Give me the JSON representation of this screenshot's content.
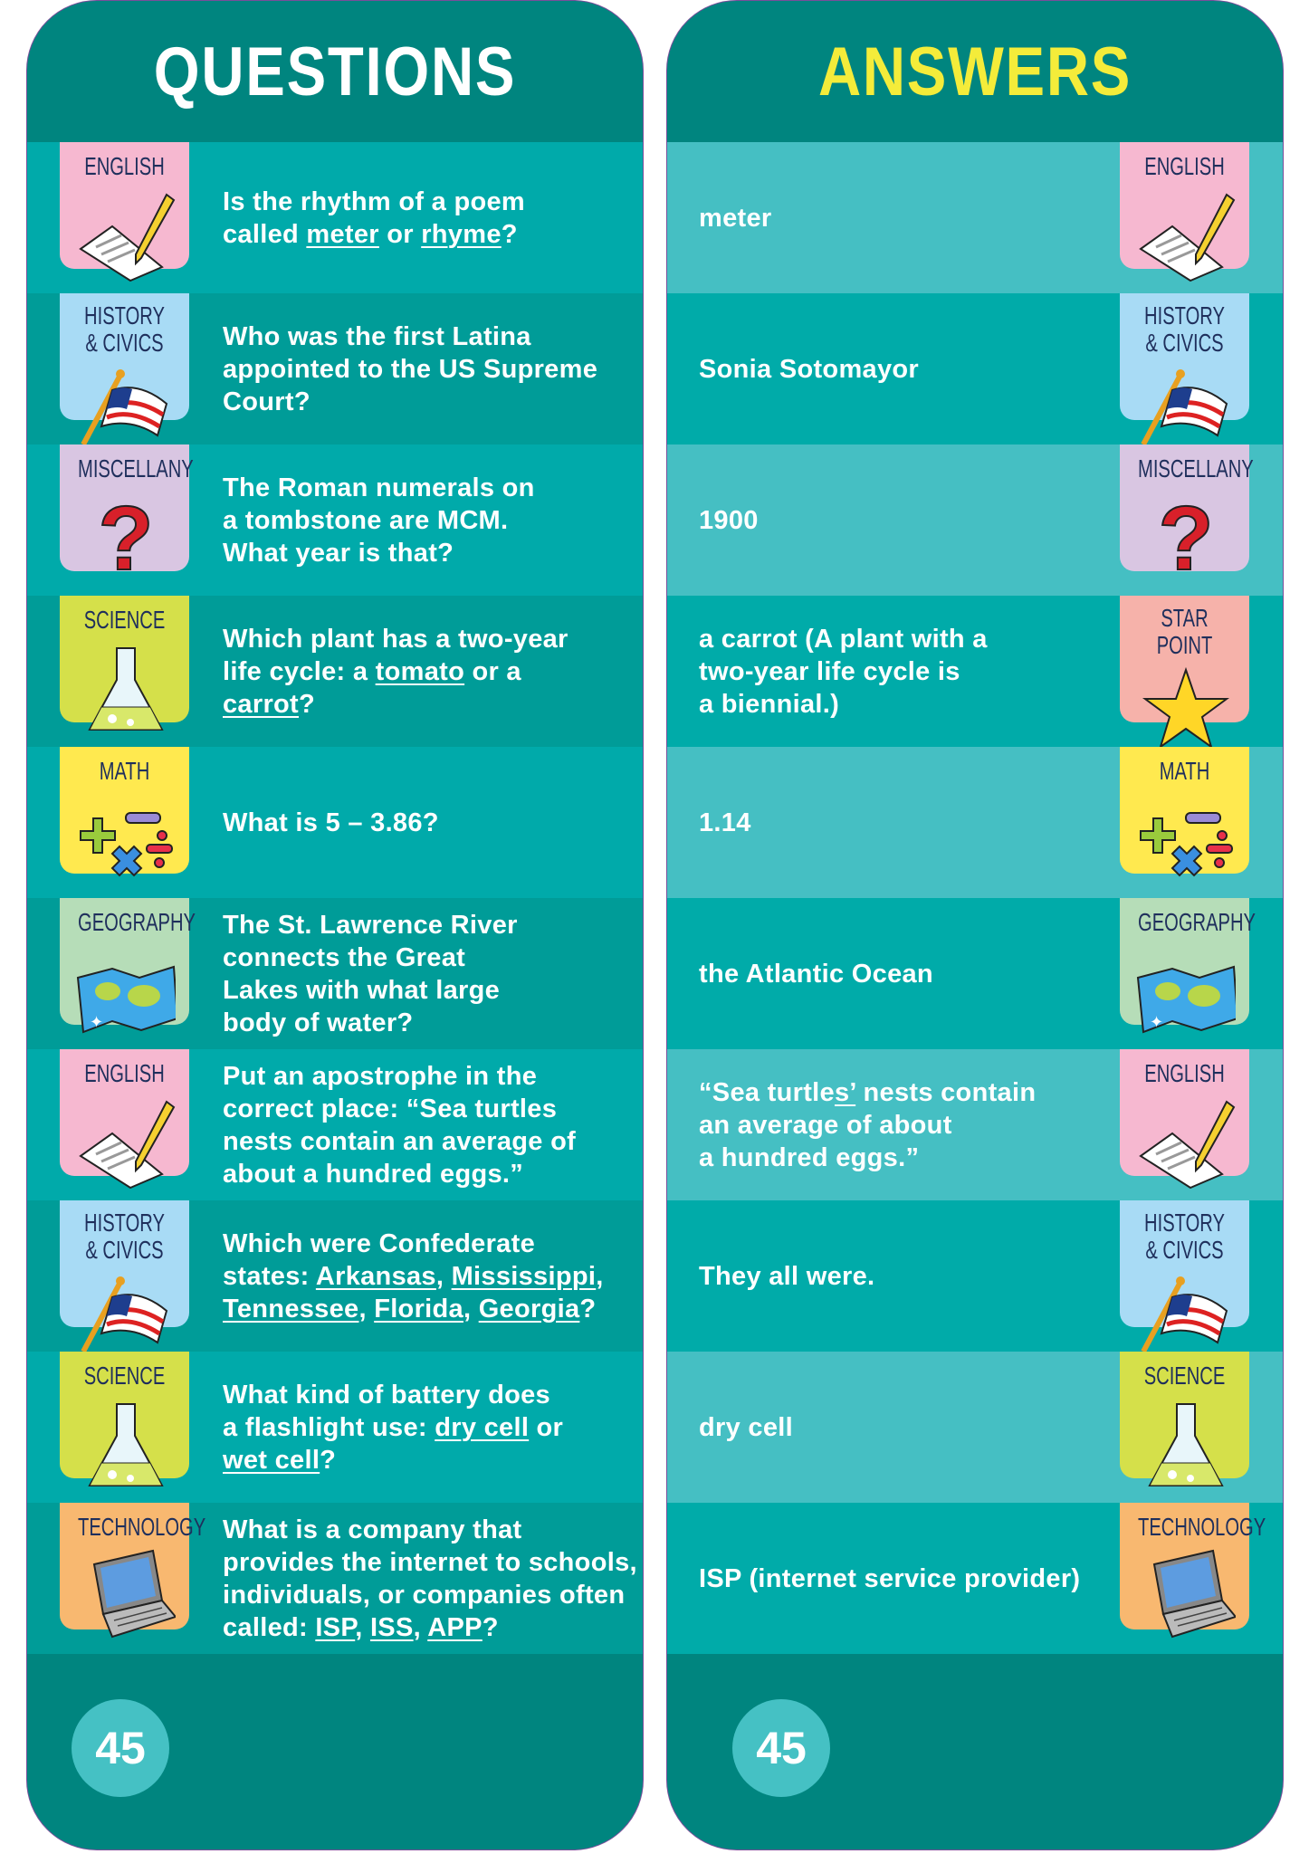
{
  "questions_title": "QUESTIONS",
  "answers_title": "ANSWERS",
  "page_number": "45",
  "colors": {
    "card": "#00857F",
    "row_light_q": "#00AAAA",
    "row_dark_q": "#009C98",
    "row_light_a": "#45BFC3",
    "row_dark_a": "#00ABA9",
    "answers_title": "#F4EC3A"
  },
  "categories": {
    "english": {
      "label": "ENGLISH",
      "bg": "#F6B8D0",
      "icon": "paper-pencil"
    },
    "history": {
      "label": "HISTORY\n& CIVICS",
      "bg": "#A8DBF5",
      "icon": "us-flag"
    },
    "misc": {
      "label": "MISCELLANY",
      "bg": "#D9C6E2",
      "icon": "question-mark"
    },
    "science": {
      "label": "SCIENCE",
      "bg": "#D5E04A",
      "icon": "flask"
    },
    "math": {
      "label": "MATH",
      "bg": "#FFE94F",
      "icon": "math-symbols"
    },
    "geography": {
      "label": "GEOGRAPHY",
      "bg": "#B6DDB8",
      "icon": "world-map"
    },
    "star": {
      "label": "STAR\nPOINT",
      "bg": "#F6B2AA",
      "icon": "star"
    },
    "technology": {
      "label": "TECHNOLOGY",
      "bg": "#F8B870",
      "icon": "laptop"
    }
  },
  "rows": [
    {
      "q_cat": "english",
      "a_cat": "english",
      "question": [
        {
          "t": "Is the rhythm of a poem\ncalled "
        },
        {
          "t": "meter",
          "u": true
        },
        {
          "t": " or "
        },
        {
          "t": "rhyme",
          "u": true
        },
        {
          "t": "?"
        }
      ],
      "answer": [
        {
          "t": "meter"
        }
      ]
    },
    {
      "q_cat": "history",
      "a_cat": "history",
      "question": [
        {
          "t": "Who was the first Latina\nappointed to the US Supreme\nCourt?"
        }
      ],
      "answer": [
        {
          "t": "Sonia Sotomayor"
        }
      ]
    },
    {
      "q_cat": "misc",
      "a_cat": "misc",
      "question": [
        {
          "t": "The Roman numerals on\na tombstone are MCM.\nWhat year is that?"
        }
      ],
      "answer": [
        {
          "t": "1900"
        }
      ]
    },
    {
      "q_cat": "science",
      "a_cat": "star",
      "question": [
        {
          "t": "Which plant has a two-year\nlife cycle: a "
        },
        {
          "t": "tomato",
          "u": true
        },
        {
          "t": " or a\n"
        },
        {
          "t": "carrot",
          "u": true
        },
        {
          "t": "?"
        }
      ],
      "answer": [
        {
          "t": "a carrot (A plant with a\ntwo-year life cycle is\na biennial.)"
        }
      ]
    },
    {
      "q_cat": "math",
      "a_cat": "math",
      "question": [
        {
          "t": "What is 5 – 3.86?"
        }
      ],
      "answer": [
        {
          "t": "1.14"
        }
      ]
    },
    {
      "q_cat": "geography",
      "a_cat": "geography",
      "question": [
        {
          "t": "The St. Lawrence River\nconnects the Great\nLakes with what large\nbody of water?"
        }
      ],
      "answer": [
        {
          "t": "the Atlantic Ocean"
        }
      ]
    },
    {
      "q_cat": "english",
      "a_cat": "english",
      "question": [
        {
          "t": "Put an apostrophe in the\ncorrect place: “Sea turtles\nnests contain an average of\nabout a hundred eggs.”"
        }
      ],
      "answer": [
        {
          "t": "“Sea turtle"
        },
        {
          "t": "s’",
          "u": true
        },
        {
          "t": " nests contain\nan average of about\na hundred eggs.”"
        }
      ]
    },
    {
      "q_cat": "history",
      "a_cat": "history",
      "question": [
        {
          "t": "Which were Confederate\nstates: "
        },
        {
          "t": "Arkansas",
          "u": true
        },
        {
          "t": ", "
        },
        {
          "t": "Mississippi",
          "u": true
        },
        {
          "t": ",\n"
        },
        {
          "t": "Tennessee",
          "u": true
        },
        {
          "t": ", "
        },
        {
          "t": "Florida",
          "u": true
        },
        {
          "t": ", "
        },
        {
          "t": "Georgia",
          "u": true
        },
        {
          "t": "?"
        }
      ],
      "answer": [
        {
          "t": "They all were."
        }
      ]
    },
    {
      "q_cat": "science",
      "a_cat": "science",
      "question": [
        {
          "t": "What kind of battery does\na flashlight use: "
        },
        {
          "t": "dry cell",
          "u": true
        },
        {
          "t": " or\n"
        },
        {
          "t": "wet cell",
          "u": true
        },
        {
          "t": "?"
        }
      ],
      "answer": [
        {
          "t": "dry cell"
        }
      ]
    },
    {
      "q_cat": "technology",
      "a_cat": "technology",
      "question": [
        {
          "t": "What is a company that\nprovides the internet to schools,\nindividuals, or companies often\ncalled: "
        },
        {
          "t": "ISP",
          "u": true
        },
        {
          "t": ", "
        },
        {
          "t": "ISS",
          "u": true
        },
        {
          "t": ", "
        },
        {
          "t": "APP",
          "u": true
        },
        {
          "t": "?"
        }
      ],
      "answer": [
        {
          "t": "ISP (internet service provider)"
        }
      ]
    }
  ]
}
